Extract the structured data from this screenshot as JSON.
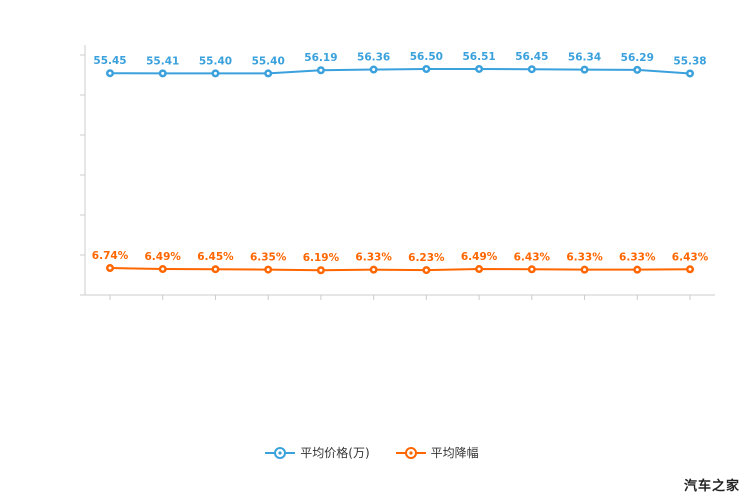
{
  "chart_data": {
    "type": "line",
    "title": "",
    "xlabel": "",
    "ylabel": "",
    "x_point_count": 12,
    "ylim": [
      0,
      60
    ],
    "y_ticks": [
      0,
      10,
      20,
      30,
      40,
      50,
      60
    ],
    "grid": false,
    "legend_position": "bottom",
    "series": [
      {
        "name": "平均价格(万)",
        "color": "#3aa1dc",
        "label_suffix": "",
        "values": [
          55.45,
          55.41,
          55.4,
          55.4,
          56.19,
          56.36,
          56.5,
          56.51,
          56.45,
          56.34,
          56.29,
          55.38
        ]
      },
      {
        "name": "平均降幅",
        "color": "#ff6600",
        "label_suffix": "%",
        "values": [
          6.74,
          6.49,
          6.45,
          6.35,
          6.19,
          6.33,
          6.23,
          6.49,
          6.43,
          6.33,
          6.33,
          6.43
        ]
      }
    ]
  },
  "legend": {
    "items": [
      {
        "label": "平均价格(万)",
        "color": "#3aa1dc"
      },
      {
        "label": "平均降幅",
        "color": "#ff6600"
      }
    ]
  },
  "watermark": "汽车之家",
  "colors": {
    "axis": "#cccccc",
    "background": "#ffffff",
    "legend_text": "#333333",
    "watermark_text": "#222222"
  }
}
